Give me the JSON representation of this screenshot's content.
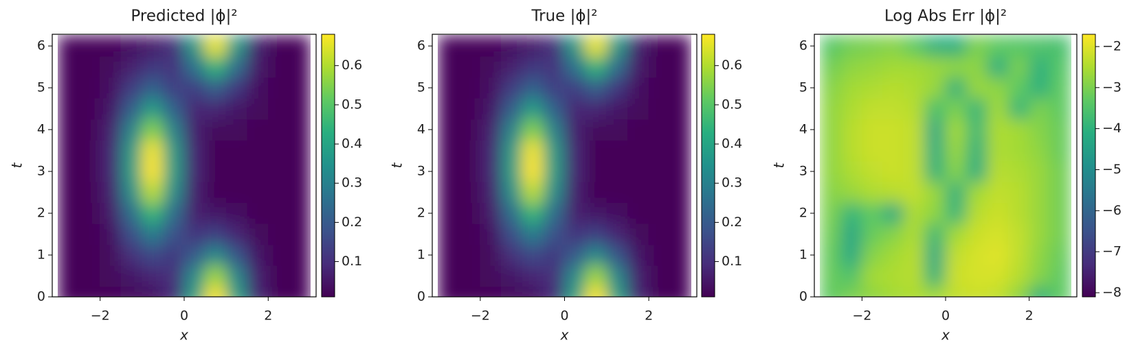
{
  "chart_data": [
    {
      "type": "heatmap",
      "title": "Predicted |ϕ|²",
      "xlabel": "x",
      "ylabel": "t",
      "colormap": "viridis",
      "x": [
        -2.75,
        -2.25,
        -1.75,
        -1.25,
        -0.75,
        -0.25,
        0.25,
        0.75,
        1.25,
        1.75,
        2.25,
        2.75
      ],
      "y": [
        0,
        0.5,
        1,
        1.5,
        2,
        2.5,
        3,
        3.5,
        4,
        4.5,
        5,
        5.5,
        6
      ],
      "values": [
        [
          0.02,
          0.02,
          0.02,
          0.03,
          0.04,
          0.09,
          0.39,
          0.68,
          0.39,
          0.08,
          0.02,
          0.02
        ],
        [
          0.02,
          0.02,
          0.03,
          0.05,
          0.08,
          0.1,
          0.33,
          0.58,
          0.32,
          0.07,
          0.02,
          0.02
        ],
        [
          0.02,
          0.02,
          0.03,
          0.1,
          0.16,
          0.12,
          0.2,
          0.33,
          0.19,
          0.05,
          0.02,
          0.02
        ],
        [
          0.02,
          0.02,
          0.04,
          0.17,
          0.29,
          0.18,
          0.11,
          0.14,
          0.08,
          0.03,
          0.02,
          0.02
        ],
        [
          0.02,
          0.02,
          0.06,
          0.25,
          0.45,
          0.25,
          0.07,
          0.05,
          0.04,
          0.02,
          0.02,
          0.02
        ],
        [
          0.02,
          0.02,
          0.07,
          0.34,
          0.61,
          0.34,
          0.07,
          0.02,
          0.02,
          0.02,
          0.02,
          0.02
        ],
        [
          0.02,
          0.02,
          0.08,
          0.38,
          0.68,
          0.38,
          0.08,
          0.02,
          0.02,
          0.02,
          0.02,
          0.02
        ],
        [
          0.02,
          0.02,
          0.08,
          0.37,
          0.67,
          0.37,
          0.08,
          0.02,
          0.02,
          0.02,
          0.02,
          0.02
        ],
        [
          0.02,
          0.02,
          0.07,
          0.31,
          0.55,
          0.31,
          0.07,
          0.03,
          0.03,
          0.02,
          0.02,
          0.02
        ],
        [
          0.02,
          0.02,
          0.05,
          0.21,
          0.38,
          0.22,
          0.08,
          0.08,
          0.05,
          0.03,
          0.02,
          0.02
        ],
        [
          0.02,
          0.02,
          0.04,
          0.13,
          0.22,
          0.14,
          0.14,
          0.21,
          0.12,
          0.04,
          0.02,
          0.02
        ],
        [
          0.02,
          0.02,
          0.03,
          0.07,
          0.12,
          0.11,
          0.26,
          0.44,
          0.25,
          0.06,
          0.02,
          0.02
        ],
        [
          0.02,
          0.02,
          0.02,
          0.04,
          0.06,
          0.1,
          0.37,
          0.66,
          0.37,
          0.07,
          0.02,
          0.02
        ]
      ],
      "xlim": [
        -3.14,
        3.14
      ],
      "ylim": [
        0,
        6.28
      ],
      "xticks": [
        {
          "value": -2,
          "label": "−2"
        },
        0,
        2
      ],
      "yticks": [
        0,
        1,
        2,
        3,
        4,
        5,
        6
      ],
      "clim": [
        0.01,
        0.68
      ],
      "cticks": [
        0.1,
        0.2,
        0.3,
        0.4,
        0.5,
        0.6
      ]
    },
    {
      "type": "heatmap",
      "title": "True |ϕ|²",
      "xlabel": "x",
      "ylabel": "t",
      "colormap": "viridis",
      "x": [
        -2.75,
        -2.25,
        -1.75,
        -1.25,
        -0.75,
        -0.25,
        0.25,
        0.75,
        1.25,
        1.75,
        2.25,
        2.75
      ],
      "y": [
        0,
        0.5,
        1,
        1.5,
        2,
        2.5,
        3,
        3.5,
        4,
        4.5,
        5,
        5.5,
        6
      ],
      "values": [
        [
          0.02,
          0.02,
          0.02,
          0.03,
          0.04,
          0.09,
          0.39,
          0.68,
          0.39,
          0.08,
          0.02,
          0.02
        ],
        [
          0.02,
          0.02,
          0.03,
          0.05,
          0.08,
          0.1,
          0.33,
          0.58,
          0.32,
          0.07,
          0.02,
          0.02
        ],
        [
          0.02,
          0.02,
          0.03,
          0.1,
          0.16,
          0.12,
          0.2,
          0.33,
          0.19,
          0.05,
          0.02,
          0.02
        ],
        [
          0.02,
          0.02,
          0.04,
          0.17,
          0.29,
          0.18,
          0.11,
          0.14,
          0.08,
          0.03,
          0.02,
          0.02
        ],
        [
          0.02,
          0.02,
          0.06,
          0.25,
          0.45,
          0.25,
          0.07,
          0.05,
          0.04,
          0.02,
          0.02,
          0.02
        ],
        [
          0.02,
          0.02,
          0.07,
          0.34,
          0.61,
          0.34,
          0.07,
          0.02,
          0.02,
          0.02,
          0.02,
          0.02
        ],
        [
          0.02,
          0.02,
          0.08,
          0.38,
          0.68,
          0.38,
          0.08,
          0.02,
          0.02,
          0.02,
          0.02,
          0.02
        ],
        [
          0.02,
          0.02,
          0.08,
          0.37,
          0.67,
          0.37,
          0.08,
          0.02,
          0.02,
          0.02,
          0.02,
          0.02
        ],
        [
          0.02,
          0.02,
          0.07,
          0.31,
          0.55,
          0.31,
          0.07,
          0.03,
          0.03,
          0.02,
          0.02,
          0.02
        ],
        [
          0.02,
          0.02,
          0.05,
          0.21,
          0.38,
          0.22,
          0.08,
          0.08,
          0.05,
          0.03,
          0.02,
          0.02
        ],
        [
          0.02,
          0.02,
          0.04,
          0.13,
          0.22,
          0.14,
          0.14,
          0.21,
          0.12,
          0.04,
          0.02,
          0.02
        ],
        [
          0.02,
          0.02,
          0.03,
          0.07,
          0.12,
          0.11,
          0.26,
          0.44,
          0.25,
          0.06,
          0.02,
          0.02
        ],
        [
          0.02,
          0.02,
          0.02,
          0.04,
          0.06,
          0.1,
          0.37,
          0.66,
          0.37,
          0.07,
          0.02,
          0.02
        ]
      ],
      "xlim": [
        -3.14,
        3.14
      ],
      "ylim": [
        0,
        6.28
      ],
      "xticks": [
        {
          "value": -2,
          "label": "−2"
        },
        0,
        2
      ],
      "yticks": [
        0,
        1,
        2,
        3,
        4,
        5,
        6
      ],
      "clim": [
        0.01,
        0.68
      ],
      "cticks": [
        0.1,
        0.2,
        0.3,
        0.4,
        0.5,
        0.6
      ]
    },
    {
      "type": "heatmap",
      "title": "Log Abs Err |ϕ|²",
      "xlabel": "x",
      "ylabel": "t",
      "colormap": "viridis",
      "x": [
        -2.75,
        -2.25,
        -1.75,
        -1.25,
        -0.75,
        -0.25,
        0.25,
        0.75,
        1.25,
        1.75,
        2.25,
        2.75
      ],
      "y": [
        0,
        0.5,
        1,
        1.5,
        2,
        2.5,
        3,
        3.5,
        4,
        4.5,
        5,
        5.5,
        6
      ],
      "values": [
        [
          -3.3,
          -3.0,
          -2.8,
          -2.6,
          -2.5,
          -2.6,
          -2.3,
          -2.2,
          -2.3,
          -2.8,
          -4.0,
          -3.3
        ],
        [
          -3.2,
          -3.5,
          -2.6,
          -2.5,
          -2.4,
          -4.0,
          -2.2,
          -2.1,
          -2.1,
          -2.4,
          -2.9,
          -3.3
        ],
        [
          -3.2,
          -4.2,
          -2.9,
          -2.6,
          -2.4,
          -4.2,
          -2.3,
          -2.1,
          -2.0,
          -2.3,
          -2.8,
          -3.2
        ],
        [
          -3.1,
          -4.3,
          -3.2,
          -2.9,
          -2.5,
          -3.8,
          -2.6,
          -2.2,
          -2.1,
          -2.3,
          -2.7,
          -3.1
        ],
        [
          -3.0,
          -3.9,
          -3.3,
          -4.2,
          -2.5,
          -2.8,
          -3.9,
          -2.4,
          -2.2,
          -2.4,
          -2.7,
          -3.1
        ],
        [
          -2.9,
          -2.7,
          -2.5,
          -2.4,
          -2.3,
          -2.7,
          -4.0,
          -2.6,
          -2.3,
          -2.4,
          -2.7,
          -3.1
        ],
        [
          -2.8,
          -2.5,
          -2.3,
          -2.2,
          -2.3,
          -4.0,
          -2.9,
          -4.1,
          -2.4,
          -2.5,
          -2.7,
          -3.1
        ],
        [
          -2.8,
          -2.4,
          -2.2,
          -2.2,
          -2.3,
          -4.1,
          -2.7,
          -4.0,
          -2.5,
          -2.6,
          -2.8,
          -3.2
        ],
        [
          -2.8,
          -2.4,
          -2.2,
          -2.2,
          -2.3,
          -4.2,
          -2.6,
          -3.8,
          -2.5,
          -2.6,
          -2.9,
          -3.2
        ],
        [
          -2.8,
          -2.5,
          -2.3,
          -2.3,
          -2.4,
          -3.6,
          -3.0,
          -3.9,
          -2.6,
          -3.9,
          -3.0,
          -3.3
        ],
        [
          -2.9,
          -2.6,
          -2.5,
          -2.4,
          -2.5,
          -2.7,
          -4.0,
          -2.7,
          -2.8,
          -3.3,
          -4.0,
          -3.3
        ],
        [
          -3.1,
          -2.8,
          -2.7,
          -2.6,
          -2.6,
          -2.7,
          -2.8,
          -2.8,
          -4.1,
          -3.0,
          -4.0,
          -3.4
        ],
        [
          -3.4,
          -3.1,
          -3.0,
          -2.9,
          -3.3,
          -4.0,
          -4.1,
          -3.0,
          -3.3,
          -3.4,
          -3.5,
          -3.6
        ]
      ],
      "xlim": [
        -3.14,
        3.14
      ],
      "ylim": [
        0,
        6.28
      ],
      "xticks": [
        {
          "value": -2,
          "label": "−2"
        },
        0,
        2
      ],
      "yticks": [
        0,
        1,
        2,
        3,
        4,
        5,
        6
      ],
      "clim": [
        -8.1,
        -1.7
      ],
      "cticks": [
        {
          "value": -8,
          "label": "−8"
        },
        {
          "value": -7,
          "label": "−7"
        },
        {
          "value": -6,
          "label": "−6"
        },
        {
          "value": -5,
          "label": "−5"
        },
        {
          "value": -4,
          "label": "−4"
        },
        {
          "value": -3,
          "label": "−3"
        },
        {
          "value": -2,
          "label": "−2"
        }
      ]
    }
  ]
}
